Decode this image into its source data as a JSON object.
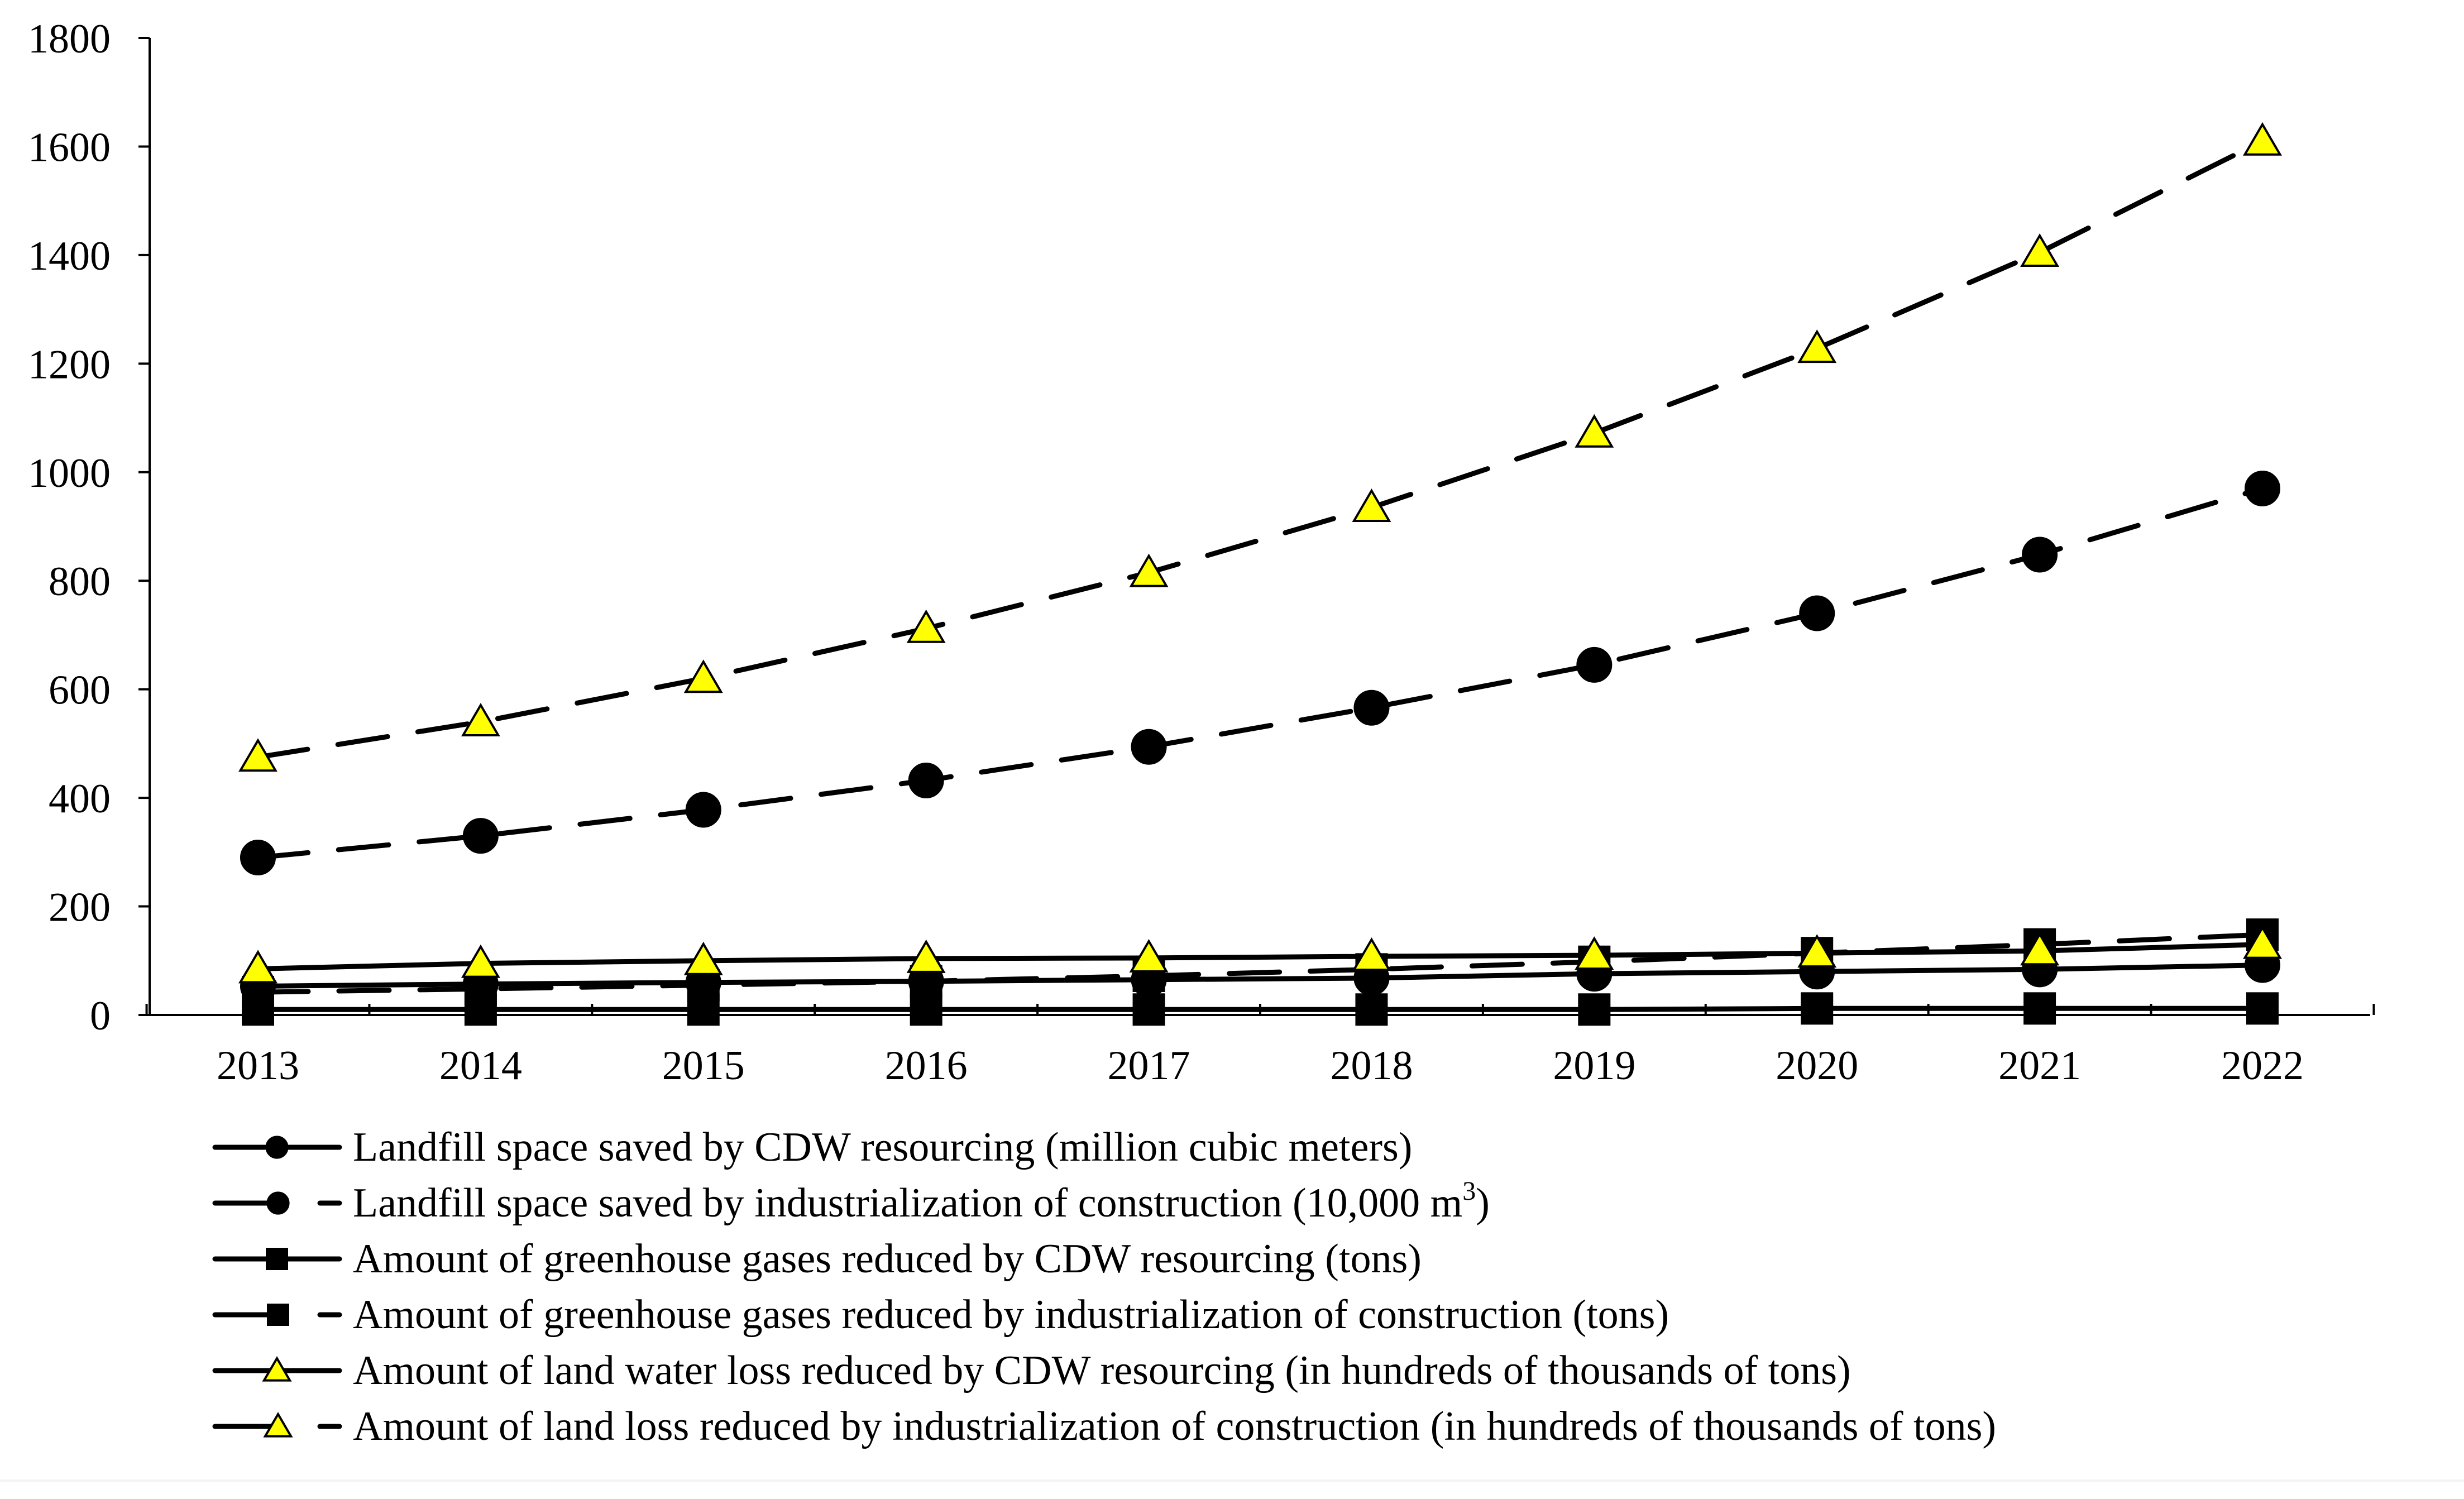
{
  "chart_data": {
    "type": "line",
    "title": "",
    "xlabel": "",
    "ylabel": "",
    "x": [
      "2013",
      "2014",
      "2015",
      "2016",
      "2017",
      "2018",
      "2019",
      "2020",
      "2021",
      "2022"
    ],
    "ylim": [
      0,
      1800
    ],
    "yticks": [
      "0",
      "200",
      "400",
      "600",
      "800",
      "1000",
      "1200",
      "1400",
      "1600",
      "1800"
    ],
    "grid": false,
    "legend_position": "bottom",
    "series": [
      {
        "name": "Landfill space saved by CDW resourcing (million cubic meters)",
        "values": [
          53,
          57,
          60,
          62,
          65,
          68,
          76,
          80,
          84,
          92
        ],
        "marker": "circle",
        "line_style": "solid",
        "marker_color": "#000000"
      },
      {
        "name": "Landfill space saved by industrialization of construction (10,000 m",
        "name_superscript": "3",
        "name_suffix": ")",
        "values": [
          290,
          330,
          378,
          432,
          494,
          566,
          645,
          740,
          848,
          970
        ],
        "marker": "circle",
        "line_style": "dashed",
        "marker_color": "#000000"
      },
      {
        "name": "Amount of greenhouse gases reduced by CDW resourcing (tons)",
        "values": [
          10,
          10,
          10,
          10,
          10,
          10,
          10,
          12,
          12,
          12
        ],
        "marker": "square",
        "line_style": "solid",
        "marker_color": "#000000"
      },
      {
        "name": "Amount of greenhouse gases reduced by industrialization of construction (tons)",
        "values": [
          42,
          48,
          55,
          62,
          72,
          84,
          98,
          114,
          130,
          148
        ],
        "marker": "square",
        "line_style": "dashed",
        "marker_color": "#000000"
      },
      {
        "name": "Amount of land water loss reduced by CDW resourcing (in hundreds of thousands of tons)",
        "values": [
          85,
          95,
          100,
          104,
          105,
          108,
          110,
          114,
          118,
          130
        ],
        "marker": "triangle",
        "line_style": "solid",
        "marker_color": "#ffff00"
      },
      {
        "name": "Amount of land loss reduced by industrialization of construction (in hundreds of thousands of tons)",
        "values": [
          475,
          540,
          620,
          712,
          815,
          935,
          1072,
          1228,
          1405,
          1610
        ],
        "marker": "triangle",
        "line_style": "dashed",
        "marker_color": "#ffff00"
      }
    ]
  }
}
